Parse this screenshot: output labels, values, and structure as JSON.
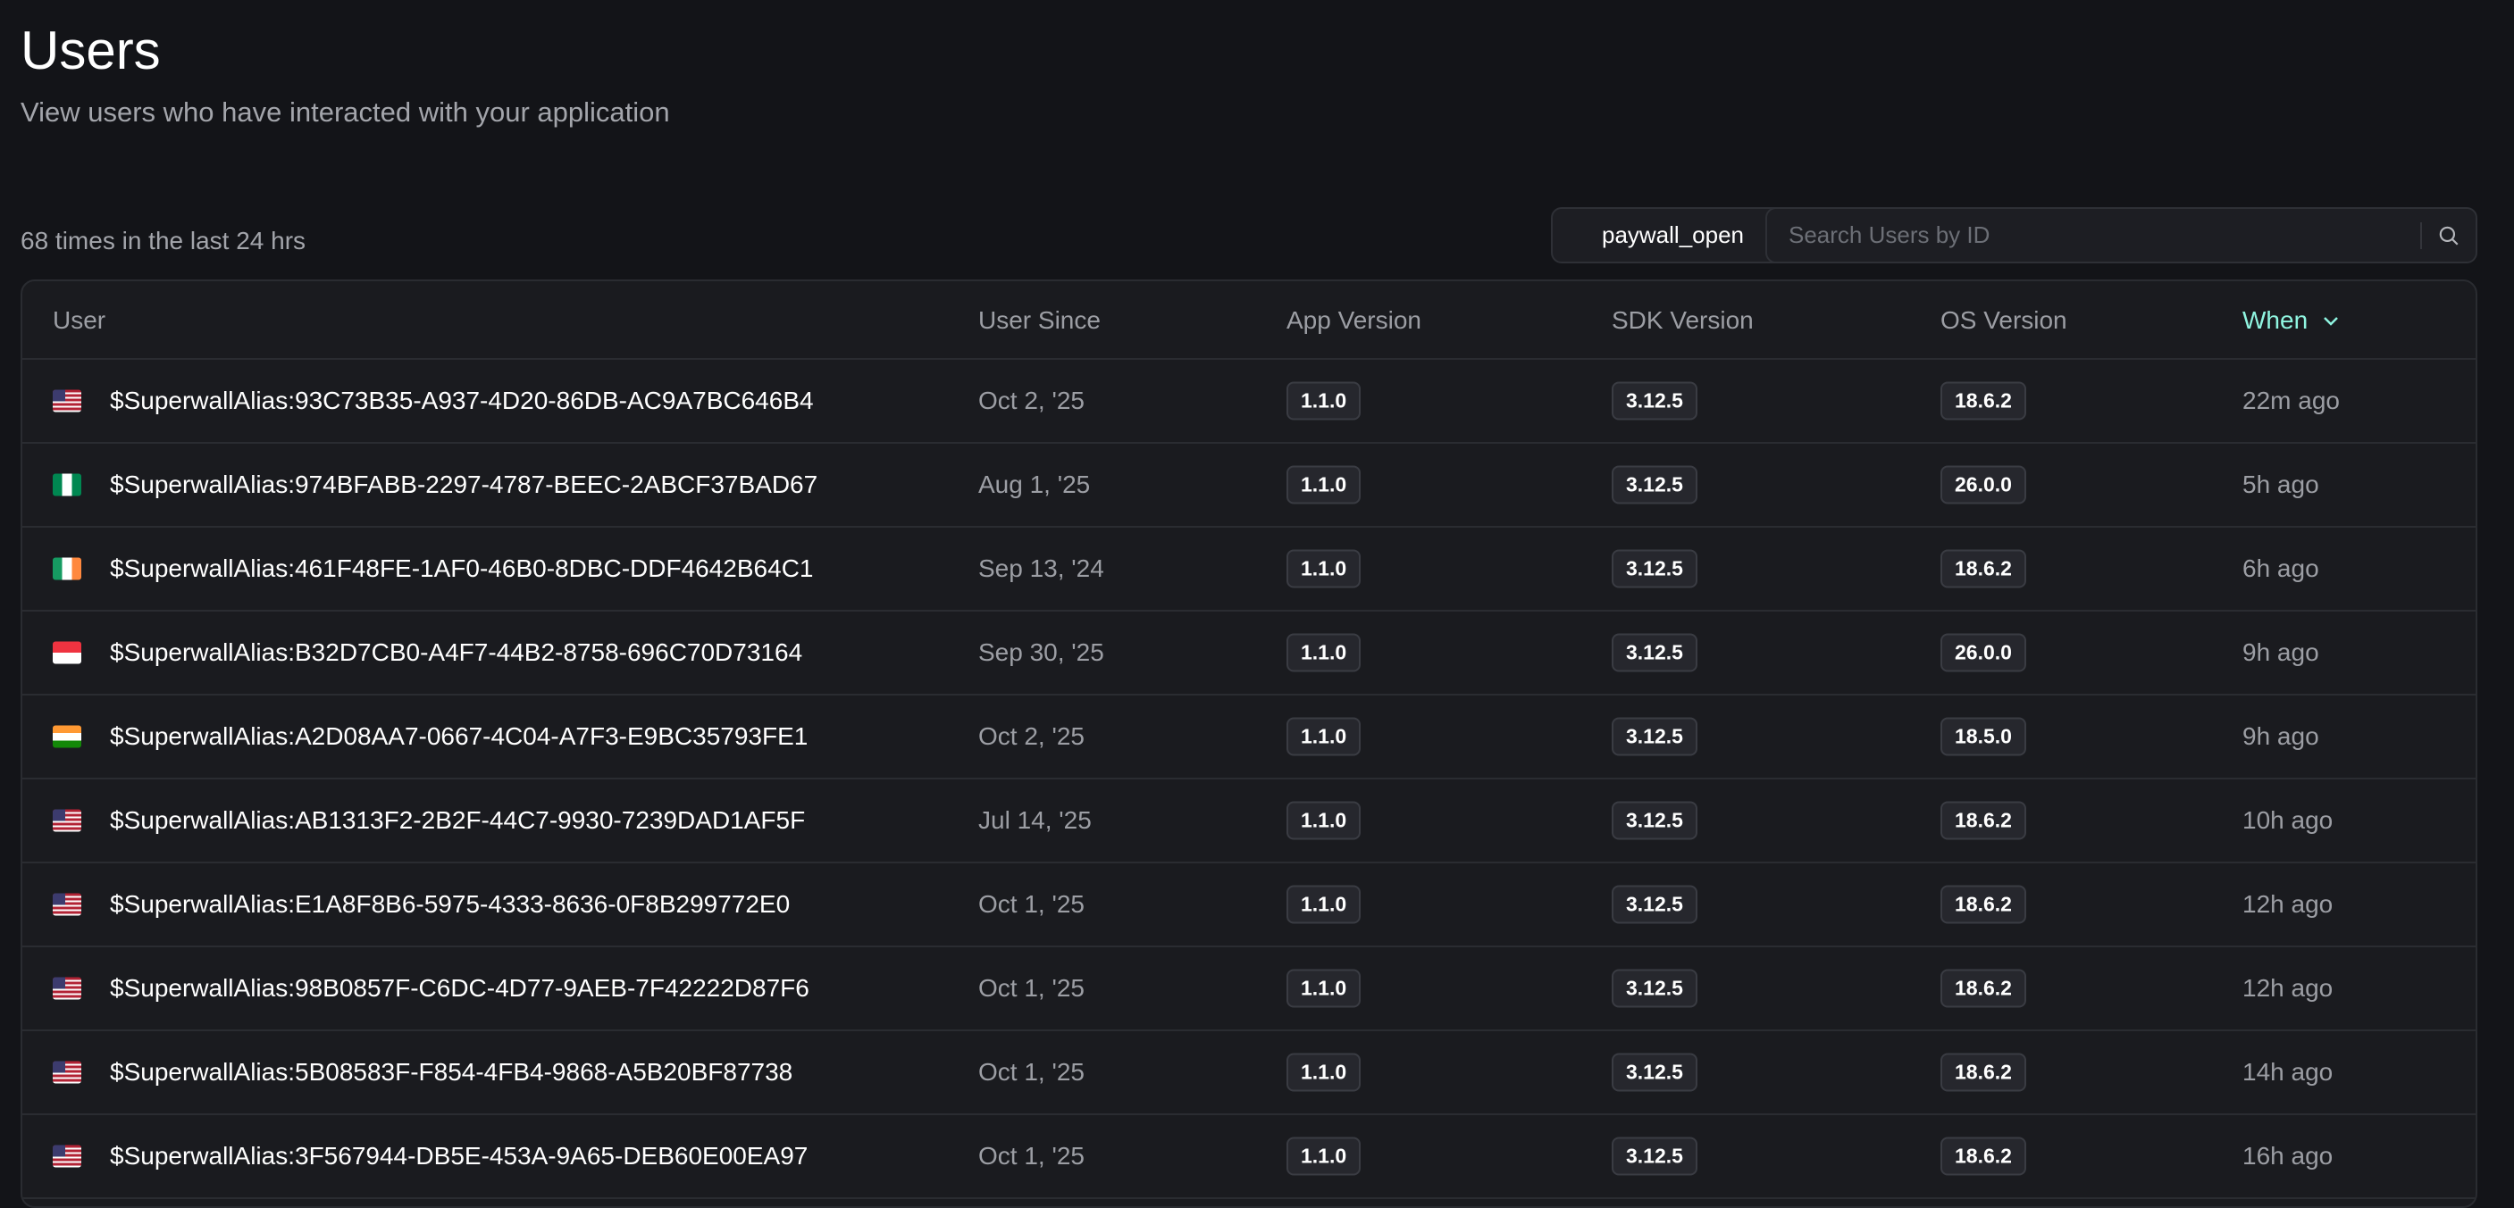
{
  "header": {
    "title": "Users",
    "subtitle": "View users who have interacted with your application"
  },
  "toolbar": {
    "count_text": "68 times in the last 24 hrs",
    "event_filter": "paywall_open",
    "search_placeholder": "Search Users by ID",
    "search_icon": "search-icon"
  },
  "colors": {
    "accent": "#8ff5e0",
    "background": "#131418"
  },
  "table": {
    "columns": [
      "User",
      "User Since",
      "App Version",
      "SDK Version",
      "OS Version",
      "When"
    ],
    "sort_icon": "chevron-down-icon",
    "rows": [
      {
        "flag": "us",
        "user": "$SuperwallAlias:93C73B35-A937-4D20-86DB-AC9A7BC646B4",
        "since": "Oct 2, '25",
        "app": "1.1.0",
        "sdk": "3.12.5",
        "os": "18.6.2",
        "when": "22m ago"
      },
      {
        "flag": "ng",
        "user": "$SuperwallAlias:974BFABB-2297-4787-BEEC-2ABCF37BAD67",
        "since": "Aug 1, '25",
        "app": "1.1.0",
        "sdk": "3.12.5",
        "os": "26.0.0",
        "when": "5h ago"
      },
      {
        "flag": "ie",
        "user": "$SuperwallAlias:461F48FE-1AF0-46B0-8DBC-DDF4642B64C1",
        "since": "Sep 13, '24",
        "app": "1.1.0",
        "sdk": "3.12.5",
        "os": "18.6.2",
        "when": "6h ago"
      },
      {
        "flag": "sg",
        "user": "$SuperwallAlias:B32D7CB0-A4F7-44B2-8758-696C70D73164",
        "since": "Sep 30, '25",
        "app": "1.1.0",
        "sdk": "3.12.5",
        "os": "26.0.0",
        "when": "9h ago"
      },
      {
        "flag": "in",
        "user": "$SuperwallAlias:A2D08AA7-0667-4C04-A7F3-E9BC35793FE1",
        "since": "Oct 2, '25",
        "app": "1.1.0",
        "sdk": "3.12.5",
        "os": "18.5.0",
        "when": "9h ago"
      },
      {
        "flag": "us",
        "user": "$SuperwallAlias:AB1313F2-2B2F-44C7-9930-7239DAD1AF5F",
        "since": "Jul 14, '25",
        "app": "1.1.0",
        "sdk": "3.12.5",
        "os": "18.6.2",
        "when": "10h ago"
      },
      {
        "flag": "us",
        "user": "$SuperwallAlias:E1A8F8B6-5975-4333-8636-0F8B299772E0",
        "since": "Oct 1, '25",
        "app": "1.1.0",
        "sdk": "3.12.5",
        "os": "18.6.2",
        "when": "12h ago"
      },
      {
        "flag": "us",
        "user": "$SuperwallAlias:98B0857F-C6DC-4D77-9AEB-7F42222D87F6",
        "since": "Oct 1, '25",
        "app": "1.1.0",
        "sdk": "3.12.5",
        "os": "18.6.2",
        "when": "12h ago"
      },
      {
        "flag": "us",
        "user": "$SuperwallAlias:5B08583F-F854-4FB4-9868-A5B20BF87738",
        "since": "Oct 1, '25",
        "app": "1.1.0",
        "sdk": "3.12.5",
        "os": "18.6.2",
        "when": "14h ago"
      },
      {
        "flag": "us",
        "user": "$SuperwallAlias:3F567944-DB5E-453A-9A65-DEB60E00EA97",
        "since": "Oct 1, '25",
        "app": "1.1.0",
        "sdk": "3.12.5",
        "os": "18.6.2",
        "when": "16h ago"
      }
    ]
  }
}
